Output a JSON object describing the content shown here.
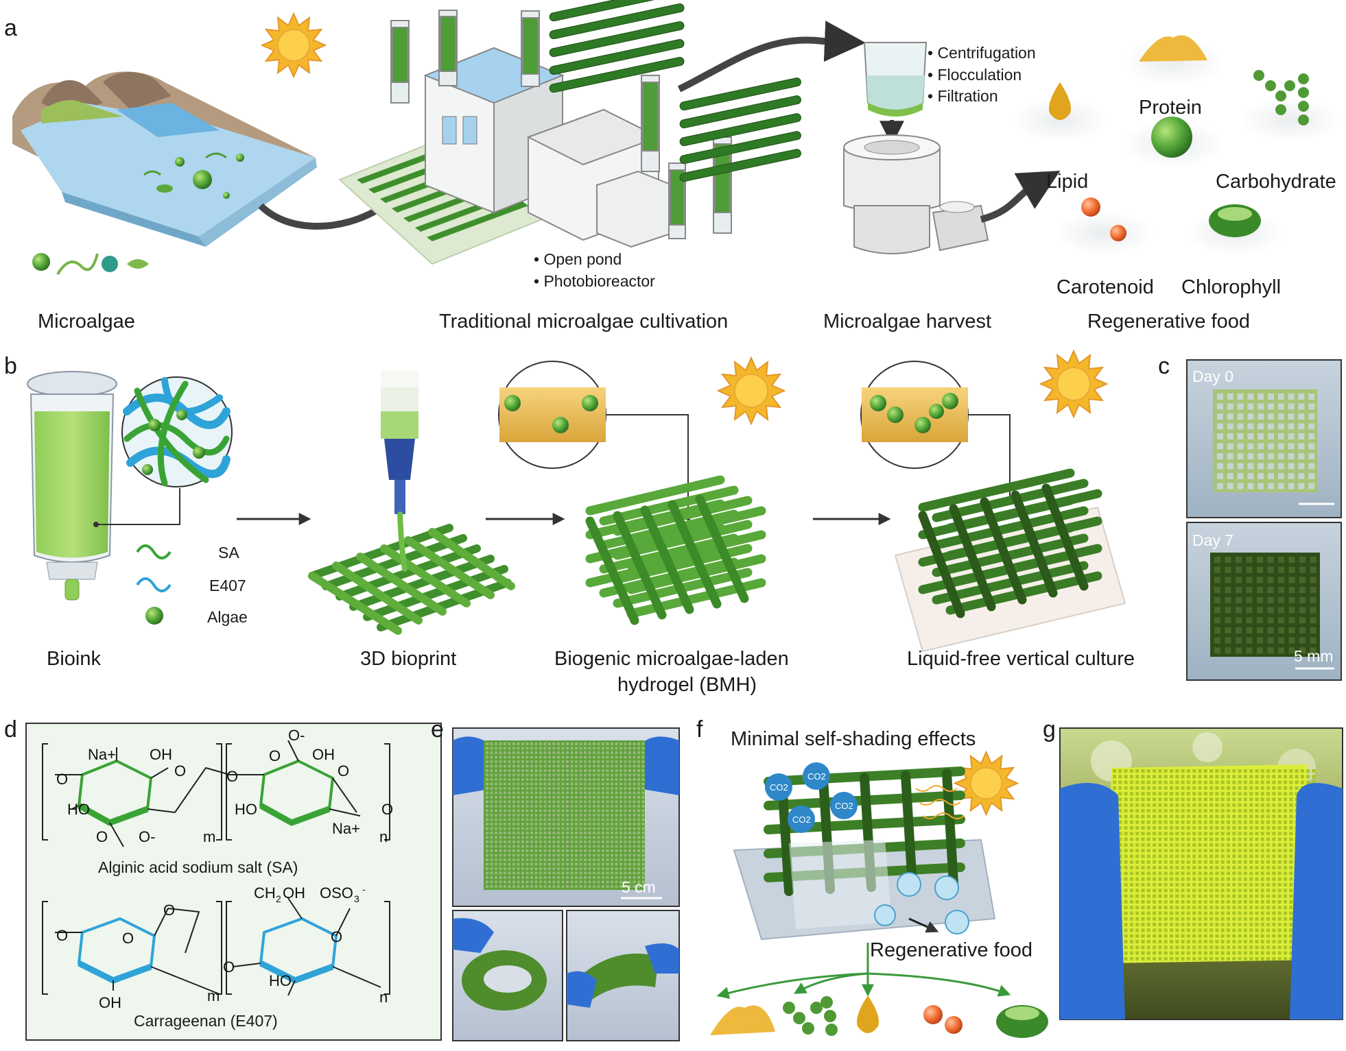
{
  "panels": {
    "a": "a",
    "b": "b",
    "c": "c",
    "d": "d",
    "e": "e",
    "f": "f",
    "g": "g"
  },
  "panel_a": {
    "microalgae_caption": "Microalgae",
    "cultivation_caption": "Traditional microalgae cultivation",
    "cultivation_methods": [
      "• Open pond",
      "• Photobioreactor"
    ],
    "harvest_caption": "Microalgae harvest",
    "harvest_methods": [
      "• Centrifugation",
      "• Flocculation",
      "• Filtration"
    ],
    "food_caption": "Regenerative food",
    "products": [
      "Protein",
      "Lipid",
      "Carbohydrate",
      "Carotenoid",
      "Chlorophyll"
    ]
  },
  "panel_b": {
    "bioink_caption": "Bioink",
    "legend": [
      "SA",
      "E407",
      "Algae"
    ],
    "bioprint_caption": "3D bioprint",
    "bmh_caption_line1": "Biogenic microalgae-laden",
    "bmh_caption_line2": "hydrogel (BMH)",
    "culture_caption": "Liquid-free vertical culture"
  },
  "panel_c": {
    "day0": "Day 0",
    "day7": "Day 7",
    "scale": "5 mm"
  },
  "panel_d": {
    "sa_name": "Alginic acid sodium salt (SA)",
    "e407_name": "Carrageenan (E407)",
    "na": "Na+",
    "oh": "OH",
    "ho": "HO",
    "o": "O",
    "om": "O-",
    "m": "m",
    "n": "n"
  },
  "panel_e": {
    "scale": "5 cm"
  },
  "panel_f": {
    "title": "Minimal self-shading effects",
    "co2": "CO2",
    "food": "Regenerative food"
  },
  "colors": {
    "algae_green": "#3f8f2c",
    "dark_green": "#2b5a1b",
    "sa_green": "#3aa335",
    "e407_blue": "#2ea3d8",
    "sun": "#f5b72a",
    "arrow": "#444444"
  },
  "icons": [
    "sun-icon",
    "pond-icon",
    "factory-icon",
    "centrifuge-icon",
    "syringe-icon",
    "glove-icon"
  ]
}
